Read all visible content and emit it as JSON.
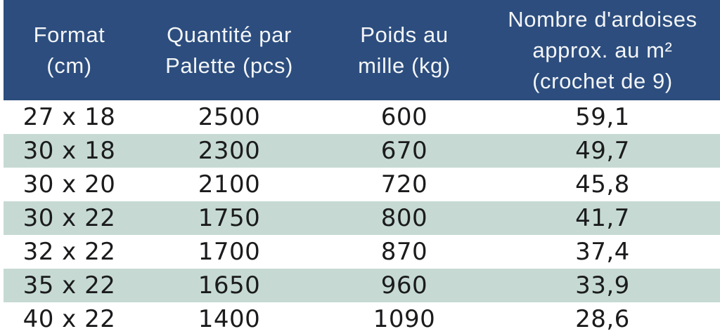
{
  "table": {
    "columns": [
      {
        "id": "format",
        "lines": [
          "Format",
          "(cm)"
        ]
      },
      {
        "id": "quantite",
        "lines": [
          "Quantité par",
          "Palette (pcs)"
        ]
      },
      {
        "id": "poids",
        "lines": [
          "Poids au",
          "mille (kg)"
        ]
      },
      {
        "id": "nombre",
        "lines": [
          "Nombre d'ardoises",
          "approx. au m²",
          "(crochet de 9)"
        ]
      }
    ],
    "rows": [
      {
        "cells": [
          "27 x 18",
          "2500",
          "600",
          "59,1"
        ]
      },
      {
        "cells": [
          "30 x 18",
          "2300",
          "670",
          "49,7"
        ]
      },
      {
        "cells": [
          "30 x 20",
          "2100",
          "720",
          "45,8"
        ]
      },
      {
        "cells": [
          "30 x 22",
          "1750",
          "800",
          "41,7"
        ]
      },
      {
        "cells": [
          "32 x 22",
          "1700",
          "870",
          "37,4"
        ]
      },
      {
        "cells": [
          "35 x 22",
          "1650",
          "960",
          "33,9"
        ]
      },
      {
        "cells": [
          "40 x 22",
          "1400",
          "1090",
          "28,6"
        ]
      }
    ]
  },
  "colors": {
    "header_bg": "#2c4d7e",
    "header_text": "#f3f5f7",
    "row_bg": "#ffffff",
    "row_alt_bg": "#c6dad3",
    "body_text": "#1b1b1d"
  },
  "chart_data": {
    "type": "table",
    "title": "",
    "columns": [
      "Format (cm)",
      "Quantité par Palette (pcs)",
      "Poids au mille (kg)",
      "Nombre d'ardoises approx. au m² (crochet de 9)"
    ],
    "rows": [
      [
        "27 x 18",
        2500,
        600,
        59.1
      ],
      [
        "30 x 18",
        2300,
        670,
        49.7
      ],
      [
        "30 x 20",
        2100,
        720,
        45.8
      ],
      [
        "30 x 22",
        1750,
        800,
        41.7
      ],
      [
        "32 x 22",
        1700,
        870,
        37.4
      ],
      [
        "35 x 22",
        1650,
        960,
        33.9
      ],
      [
        "40 x 22",
        1400,
        1090,
        28.6
      ]
    ],
    "layout": {
      "header_style": "navy-band",
      "row_striping": "white / light-teal alternating",
      "grid": false
    }
  }
}
